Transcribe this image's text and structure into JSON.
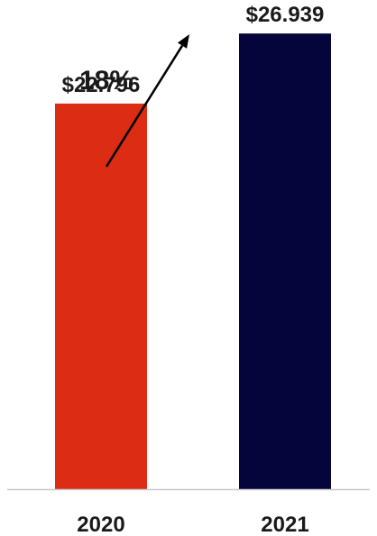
{
  "chart_data": {
    "type": "bar",
    "title": "",
    "xlabel": "",
    "ylabel": "",
    "categories": [
      "2020",
      "2021"
    ],
    "values": [
      22.796,
      26.939
    ],
    "value_labels": [
      "$22.796",
      "$26.939"
    ],
    "colors": [
      "#dc2d14",
      "#05053c"
    ],
    "ylim": [
      0,
      28.6
    ],
    "grid": false,
    "legend": "none",
    "annotation": {
      "text": "18%",
      "type": "growth-arrow",
      "from": "2020",
      "to": "2021"
    }
  }
}
